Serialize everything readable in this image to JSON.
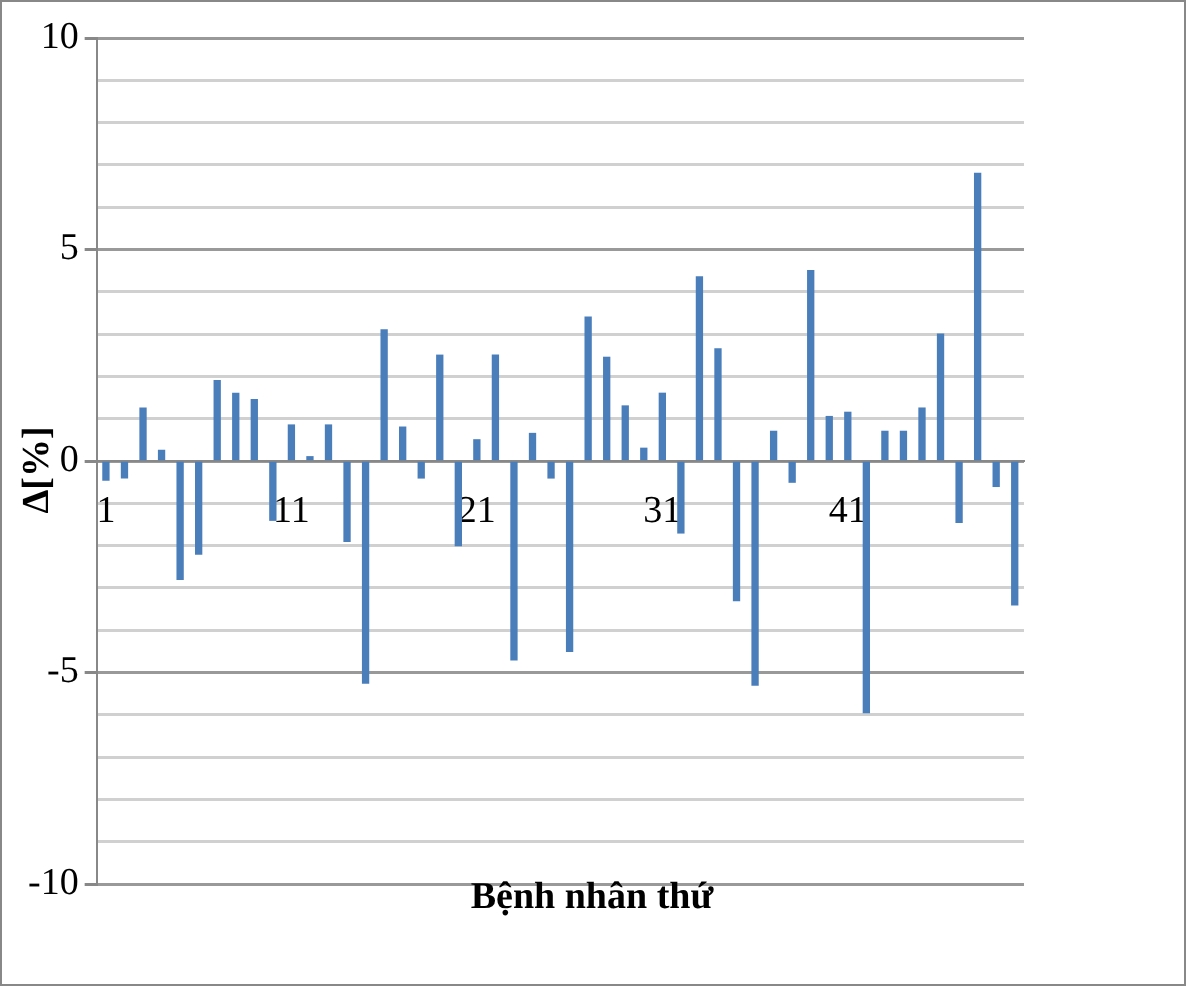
{
  "chart_data": {
    "type": "bar",
    "xlabel": "Bệnh nhân thứ",
    "ylabel": "Δ[%]",
    "categories": [
      "1",
      null,
      null,
      null,
      null,
      null,
      null,
      null,
      null,
      null,
      "11",
      null,
      null,
      null,
      null,
      null,
      null,
      null,
      null,
      null,
      "21",
      null,
      null,
      null,
      null,
      null,
      null,
      null,
      null,
      null,
      "31",
      null,
      null,
      null,
      null,
      null,
      null,
      null,
      null,
      null,
      "41",
      null,
      null,
      null,
      null,
      null,
      null,
      null,
      null,
      null
    ],
    "values": [
      -0.45,
      -0.4,
      1.25,
      0.25,
      -2.8,
      -2.2,
      1.9,
      1.6,
      1.45,
      -1.4,
      0.85,
      0.1,
      0.85,
      -1.9,
      -5.25,
      3.1,
      0.8,
      -0.4,
      2.5,
      -2.0,
      0.5,
      2.5,
      -4.7,
      0.65,
      -0.4,
      -4.5,
      3.4,
      2.45,
      1.3,
      0.3,
      1.6,
      -1.7,
      4.35,
      2.65,
      -3.3,
      -5.3,
      0.7,
      -0.5,
      4.5,
      1.05,
      1.15,
      -5.95,
      0.7,
      0.7,
      1.25,
      3.0,
      -1.45,
      6.8,
      -0.6,
      -3.4
    ],
    "color": "#4a7ebb",
    "ylim": [
      -10,
      10
    ],
    "yticks": [
      -10,
      {
        "value": -9,
        "label": null
      },
      {
        "value": -8,
        "label": null
      },
      {
        "value": -7,
        "label": null
      },
      {
        "value": -6,
        "label": null
      },
      -5,
      {
        "value": -4,
        "label": null
      },
      {
        "value": -3,
        "label": null
      },
      {
        "value": -2,
        "label": null
      },
      {
        "value": -1,
        "label": null
      },
      0,
      {
        "value": 1,
        "label": null
      },
      {
        "value": 2,
        "label": null
      },
      {
        "value": 3,
        "label": null
      },
      {
        "value": 4,
        "label": null
      },
      5,
      {
        "value": 6,
        "label": null
      },
      {
        "value": 7,
        "label": null
      },
      {
        "value": 8,
        "label": null
      },
      {
        "value": 9,
        "label": null
      },
      10
    ],
    "grid": "y",
    "legend": false
  }
}
